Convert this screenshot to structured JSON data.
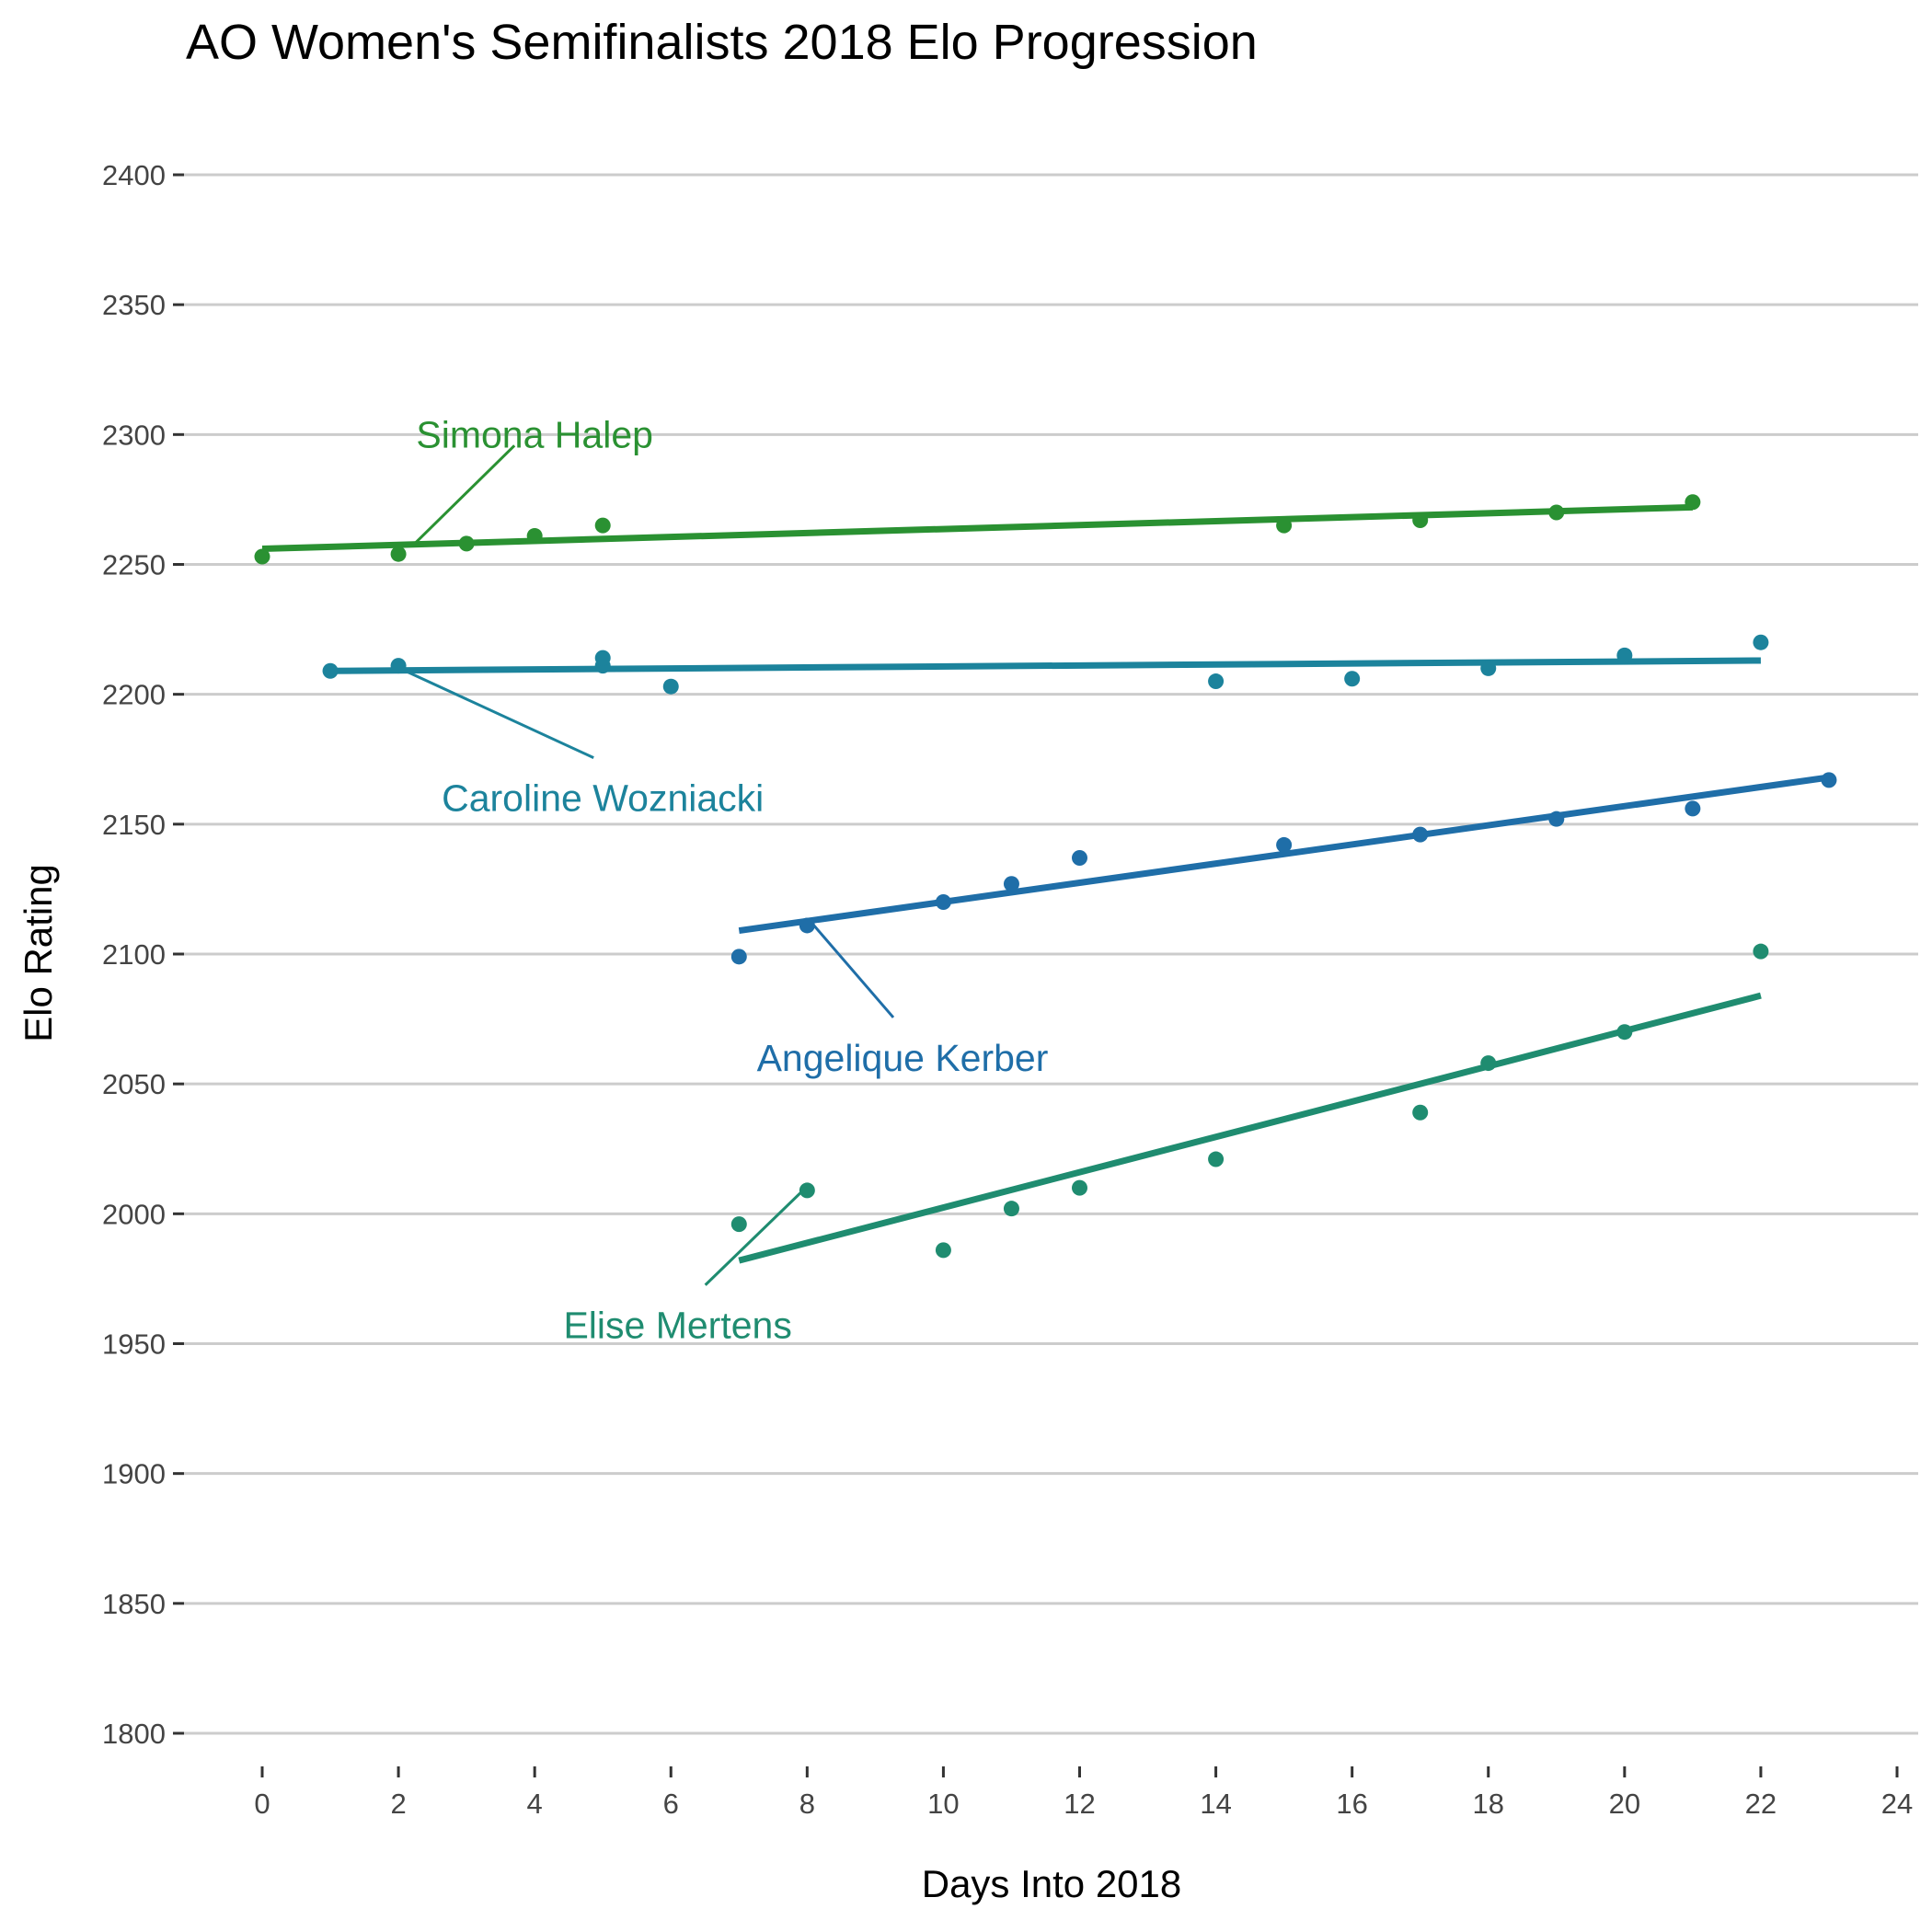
{
  "chart_data": {
    "type": "scatter",
    "title": "AO Women's Semifinalists 2018 Elo Progression",
    "xlabel": "Days Into 2018",
    "ylabel": "Elo Rating",
    "xlim": [
      -1,
      24
    ],
    "ylim": [
      1780,
      2410
    ],
    "x_ticks": [
      0,
      2,
      4,
      6,
      8,
      10,
      12,
      14,
      16,
      18,
      20,
      22,
      24
    ],
    "y_ticks": [
      1800,
      1850,
      1900,
      1950,
      2000,
      2050,
      2100,
      2150,
      2200,
      2250,
      2300,
      2350,
      2400
    ],
    "grid": "horizontal",
    "legend": "none",
    "series": [
      {
        "name": "Simona Halep",
        "color": "#2a9132",
        "points": [
          [
            0,
            2253
          ],
          [
            2,
            2254
          ],
          [
            3,
            2258
          ],
          [
            4,
            2261
          ],
          [
            5,
            2265
          ],
          [
            15,
            2265
          ],
          [
            17,
            2267
          ],
          [
            19,
            2270
          ],
          [
            21,
            2274
          ]
        ],
        "trend": [
          [
            0,
            2256
          ],
          [
            21,
            2272
          ]
        ],
        "annotation": {
          "x": 4.0,
          "y": 2300,
          "anchor": [
            2.2,
            2257
          ]
        }
      },
      {
        "name": "Caroline Wozniacki",
        "color": "#1c839c",
        "points": [
          [
            1,
            2209
          ],
          [
            2,
            2211
          ],
          [
            5,
            2211
          ],
          [
            5,
            2214
          ],
          [
            6,
            2203
          ],
          [
            14,
            2205
          ],
          [
            16,
            2206
          ],
          [
            18,
            2210
          ],
          [
            20,
            2215
          ],
          [
            22,
            2220
          ]
        ],
        "trend": [
          [
            1,
            2209
          ],
          [
            22,
            2213
          ]
        ],
        "annotation": {
          "x": 5.0,
          "y": 2160,
          "anchor": [
            2.1,
            2209
          ]
        }
      },
      {
        "name": "Angelique Kerber",
        "color": "#1f6ea8",
        "points": [
          [
            7,
            2099
          ],
          [
            8,
            2111
          ],
          [
            10,
            2120
          ],
          [
            11,
            2127
          ],
          [
            12,
            2137
          ],
          [
            15,
            2142
          ],
          [
            17,
            2146
          ],
          [
            19,
            2152
          ],
          [
            21,
            2156
          ],
          [
            23,
            2167
          ]
        ],
        "trend": [
          [
            7,
            2109
          ],
          [
            23,
            2168
          ]
        ],
        "annotation": {
          "x": 9.4,
          "y": 2060,
          "anchor": [
            8.1,
            2111
          ]
        }
      },
      {
        "name": "Elise Mertens",
        "color": "#1f8c70",
        "points": [
          [
            7,
            1996
          ],
          [
            8,
            2009
          ],
          [
            10,
            1986
          ],
          [
            11,
            2002
          ],
          [
            12,
            2010
          ],
          [
            14,
            2021
          ],
          [
            17,
            2039
          ],
          [
            18,
            2058
          ],
          [
            20,
            2070
          ],
          [
            22,
            2101
          ]
        ],
        "trend": [
          [
            7,
            1982
          ],
          [
            22,
            2084
          ]
        ],
        "annotation": {
          "x": 6.1,
          "y": 1957,
          "anchor": [
            7.9,
            2008
          ]
        }
      }
    ]
  }
}
